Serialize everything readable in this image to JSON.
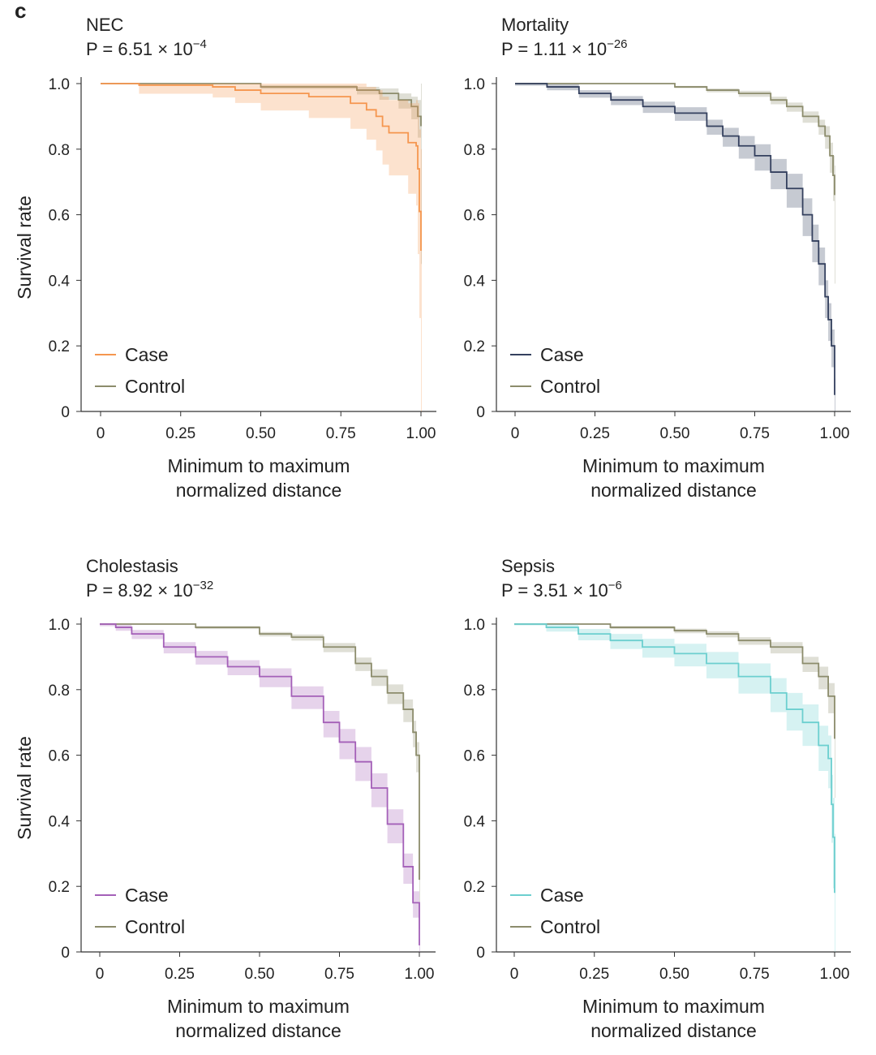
{
  "panel_letter": "c",
  "chart_data": [
    {
      "type": "line",
      "title": "NEC",
      "p_value_text": "P = 6.51 × 10",
      "p_exponent": "−4",
      "xlabel": [
        "Minimum to maximum",
        "normalized distance"
      ],
      "ylabel": "Survival rate",
      "xlim": [
        0,
        1
      ],
      "ylim": [
        0,
        1
      ],
      "xticks": [
        "0",
        "0.25",
        "0.50",
        "0.75",
        "1.00"
      ],
      "yticks": [
        "0",
        "0.2",
        "0.4",
        "0.6",
        "0.8",
        "1.0"
      ],
      "legend_position": "bottom-left",
      "series": [
        {
          "name": "Control",
          "color": "#8c8c6c",
          "x": [
            0,
            0.5,
            0.8,
            0.87,
            0.93,
            0.97,
            0.99,
            1.0
          ],
          "y": [
            1,
            0.99,
            0.98,
            0.97,
            0.95,
            0.93,
            0.9,
            0.87
          ],
          "ci": [
            0,
            0.005,
            0.01,
            0.015,
            0.02,
            0.03,
            0.05,
            0.14
          ]
        },
        {
          "name": "Case",
          "color": "#f5964f",
          "x": [
            0,
            0.12,
            0.35,
            0.42,
            0.5,
            0.65,
            0.78,
            0.83,
            0.86,
            0.88,
            0.9,
            0.96,
            0.985,
            0.99,
            0.995,
            1.0
          ],
          "y": [
            1,
            0.995,
            0.99,
            0.98,
            0.97,
            0.96,
            0.94,
            0.92,
            0.9,
            0.87,
            0.85,
            0.82,
            0.81,
            0.74,
            0.61,
            0.49
          ],
          "ci": [
            0,
            0.02,
            0.025,
            0.03,
            0.04,
            0.05,
            0.06,
            0.07,
            0.08,
            0.09,
            0.1,
            0.12,
            0.14,
            0.2,
            0.25,
            0.31
          ]
        }
      ]
    },
    {
      "type": "line",
      "title": "Mortality",
      "p_value_text": "P = 1.11 × 10",
      "p_exponent": "−26",
      "xlabel": [
        "Minimum to maximum",
        "normalized distance"
      ],
      "ylabel": "",
      "xlim": [
        0,
        1
      ],
      "ylim": [
        0,
        1
      ],
      "xticks": [
        "0",
        "0.25",
        "0.50",
        "0.75",
        "1.00"
      ],
      "yticks": [
        "0",
        "0.2",
        "0.4",
        "0.6",
        "0.8",
        "1.0"
      ],
      "legend_position": "bottom-left",
      "series": [
        {
          "name": "Control",
          "color": "#8c8c6c",
          "x": [
            0,
            0.5,
            0.6,
            0.7,
            0.8,
            0.85,
            0.9,
            0.95,
            0.97,
            0.985,
            0.995,
            1.0
          ],
          "y": [
            1,
            0.99,
            0.98,
            0.97,
            0.95,
            0.93,
            0.9,
            0.87,
            0.84,
            0.78,
            0.72,
            0.66
          ],
          "ci": [
            0,
            0.003,
            0.005,
            0.008,
            0.01,
            0.012,
            0.015,
            0.02,
            0.03,
            0.04,
            0.06,
            0.09
          ]
        },
        {
          "name": "Case",
          "color": "#34405e",
          "x": [
            0,
            0.1,
            0.2,
            0.3,
            0.4,
            0.5,
            0.6,
            0.65,
            0.7,
            0.75,
            0.8,
            0.85,
            0.9,
            0.93,
            0.95,
            0.97,
            0.98,
            0.99,
            1.0
          ],
          "y": [
            1,
            0.99,
            0.97,
            0.95,
            0.93,
            0.91,
            0.87,
            0.84,
            0.81,
            0.78,
            0.73,
            0.68,
            0.6,
            0.52,
            0.45,
            0.35,
            0.28,
            0.2,
            0.05
          ],
          "ci": [
            0.005,
            0.008,
            0.01,
            0.012,
            0.015,
            0.018,
            0.02,
            0.025,
            0.03,
            0.035,
            0.04,
            0.045,
            0.05,
            0.05,
            0.05,
            0.05,
            0.05,
            0.05,
            0.05
          ]
        }
      ]
    },
    {
      "type": "line",
      "title": "Cholestasis",
      "p_value_text": "P = 8.92 × 10",
      "p_exponent": "−32",
      "xlabel": [
        "Minimum to maximum",
        "normalized distance"
      ],
      "ylabel": "Survival rate",
      "xlim": [
        0,
        1
      ],
      "ylim": [
        0,
        1
      ],
      "xticks": [
        "0",
        "0.25",
        "0.50",
        "0.75",
        "1.00"
      ],
      "yticks": [
        "0",
        "0.2",
        "0.4",
        "0.6",
        "0.8",
        "1.0"
      ],
      "legend_position": "bottom-left",
      "series": [
        {
          "name": "Control",
          "color": "#8c8c6c",
          "x": [
            0,
            0.3,
            0.5,
            0.6,
            0.7,
            0.8,
            0.85,
            0.9,
            0.95,
            0.98,
            0.99,
            1.0
          ],
          "y": [
            1,
            0.99,
            0.97,
            0.96,
            0.93,
            0.88,
            0.84,
            0.79,
            0.74,
            0.67,
            0.6,
            0.22
          ],
          "ci": [
            0,
            0.004,
            0.006,
            0.008,
            0.012,
            0.018,
            0.022,
            0.026,
            0.03,
            0.035,
            0.04,
            0.05
          ]
        },
        {
          "name": "Case",
          "color": "#a460b8",
          "x": [
            0,
            0.05,
            0.1,
            0.2,
            0.3,
            0.4,
            0.5,
            0.6,
            0.7,
            0.75,
            0.8,
            0.85,
            0.9,
            0.95,
            0.98,
            1.0
          ],
          "y": [
            1,
            0.99,
            0.97,
            0.93,
            0.9,
            0.87,
            0.84,
            0.78,
            0.7,
            0.64,
            0.58,
            0.5,
            0.39,
            0.26,
            0.15,
            0.02
          ],
          "ci": [
            0.005,
            0.008,
            0.012,
            0.015,
            0.018,
            0.02,
            0.025,
            0.03,
            0.035,
            0.04,
            0.045,
            0.045,
            0.045,
            0.04,
            0.035,
            0.02
          ]
        }
      ]
    },
    {
      "type": "line",
      "title": "Sepsis",
      "p_value_text": "P = 3.51 × 10",
      "p_exponent": "−6",
      "xlabel": [
        "Minimum to maximum",
        "normalized distance"
      ],
      "ylabel": "",
      "xlim": [
        0,
        1
      ],
      "ylim": [
        0,
        1
      ],
      "xticks": [
        "0",
        "0.25",
        "0.50",
        "0.75",
        "1.00"
      ],
      "yticks": [
        "0",
        "0.2",
        "0.4",
        "0.6",
        "0.8",
        "1.0"
      ],
      "legend_position": "bottom-left",
      "series": [
        {
          "name": "Control",
          "color": "#8c8c6c",
          "x": [
            0,
            0.3,
            0.5,
            0.6,
            0.7,
            0.8,
            0.9,
            0.95,
            0.98,
            1.0
          ],
          "y": [
            1,
            0.99,
            0.98,
            0.97,
            0.95,
            0.93,
            0.88,
            0.84,
            0.78,
            0.65
          ],
          "ci": [
            0,
            0.004,
            0.006,
            0.008,
            0.01,
            0.015,
            0.02,
            0.03,
            0.04,
            0.06
          ]
        },
        {
          "name": "Case",
          "color": "#6ccfcf",
          "x": [
            0,
            0.1,
            0.2,
            0.3,
            0.4,
            0.5,
            0.6,
            0.7,
            0.8,
            0.85,
            0.9,
            0.95,
            0.98,
            0.99,
            0.995,
            1.0
          ],
          "y": [
            1,
            0.99,
            0.97,
            0.95,
            0.93,
            0.91,
            0.88,
            0.84,
            0.79,
            0.74,
            0.7,
            0.63,
            0.59,
            0.45,
            0.35,
            0.18
          ],
          "ci": [
            0.003,
            0.01,
            0.015,
            0.02,
            0.025,
            0.03,
            0.035,
            0.04,
            0.045,
            0.05,
            0.055,
            0.06,
            0.07,
            0.09,
            0.12,
            0.18
          ]
        }
      ]
    }
  ]
}
